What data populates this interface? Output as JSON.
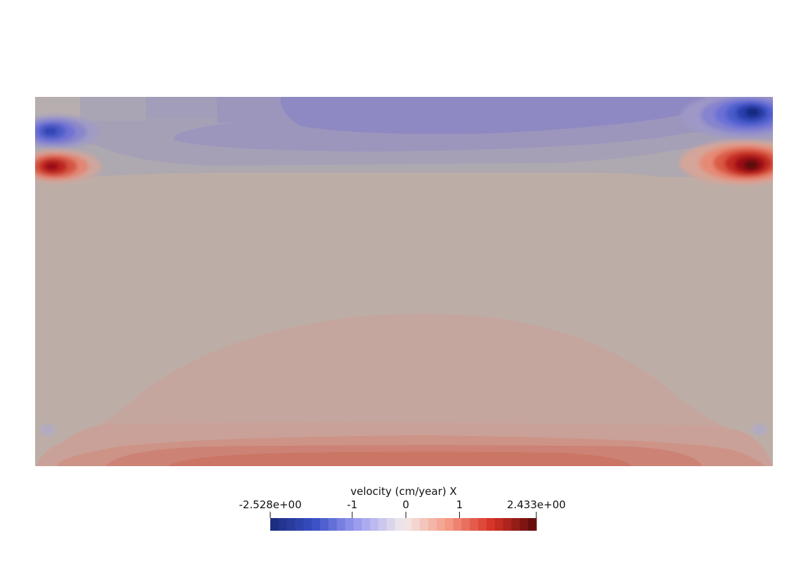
{
  "chart_data": {
    "type": "heatmap",
    "title": "",
    "colorbar": {
      "title": "velocity (cm/year) X",
      "min": -2.528,
      "max": 2.433,
      "min_label": "-2.528e+00",
      "max_label": "2.433e+00",
      "ticks": [
        {
          "value": -1,
          "label": "-1"
        },
        {
          "value": 0,
          "label": "0"
        },
        {
          "value": 1,
          "label": "1"
        }
      ],
      "num_levels": 32,
      "colormap": [
        "#1a2a7a",
        "#3a50c6",
        "#9f9ff0",
        "#f2eaea",
        "#f59a86",
        "#d73226",
        "#5c0a0a"
      ],
      "placement": "bottom-center"
    },
    "field_features": [
      {
        "feature": "top-left negative core",
        "value": -1.8
      },
      {
        "feature": "top-left positive core",
        "value": 1.7
      },
      {
        "feature": "top-right negative core",
        "value": -2.5
      },
      {
        "feature": "top-right positive core",
        "value": 2.4
      },
      {
        "feature": "top surface band",
        "value": -0.6
      },
      {
        "feature": "interior",
        "value": 0.02
      },
      {
        "feature": "bottom band",
        "value": 0.6
      }
    ]
  }
}
